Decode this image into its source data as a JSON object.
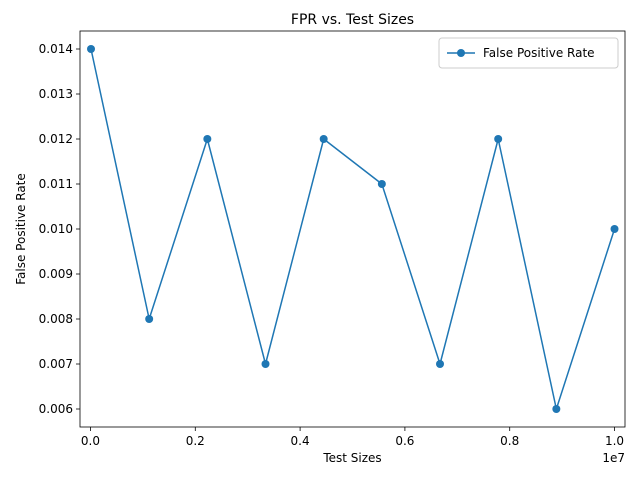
{
  "chart_data": {
    "type": "line",
    "title": "FPR vs. Test Sizes",
    "xlabel": "Test Sizes",
    "ylabel": "False Positive Rate",
    "x_offset_label": "1e7",
    "xlim": [
      -200000,
      10200000
    ],
    "ylim": [
      0.0056,
      0.0144
    ],
    "x_ticks": [
      0,
      2000000,
      4000000,
      6000000,
      8000000,
      10000000
    ],
    "x_tick_labels": [
      "0.0",
      "0.2",
      "0.4",
      "0.6",
      "0.8",
      "1.0"
    ],
    "y_ticks": [
      0.006,
      0.007,
      0.008,
      0.009,
      0.01,
      0.011,
      0.012,
      0.013,
      0.014
    ],
    "y_tick_labels": [
      "0.006",
      "0.007",
      "0.008",
      "0.009",
      "0.010",
      "0.011",
      "0.012",
      "0.013",
      "0.014"
    ],
    "grid": false,
    "legend_position": "top-right",
    "series": [
      {
        "name": "False Positive Rate",
        "color": "#1f77b4",
        "marker": "circle",
        "x": [
          10000,
          1120000,
          2230000,
          3340000,
          4450000,
          5560000,
          6670000,
          7780000,
          8890000,
          10000000
        ],
        "values": [
          0.014,
          0.008,
          0.012,
          0.007,
          0.012,
          0.011,
          0.007,
          0.012,
          0.006,
          0.01
        ]
      }
    ]
  }
}
